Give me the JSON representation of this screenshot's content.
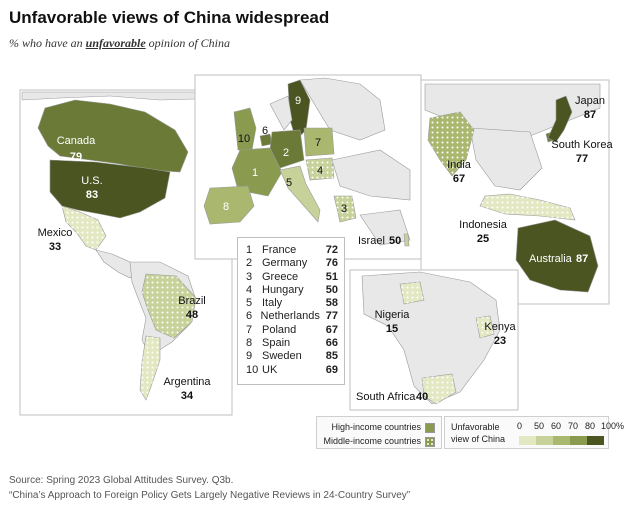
{
  "title": "Unfavorable views of China widespread",
  "subtitle": {
    "prefix": "% who have an ",
    "emphasis": "unfavorable",
    "suffix": " opinion of China"
  },
  "scale_colors": {
    "0": "#e3e8c3",
    "50": "#c7d29a",
    "60": "#a9b86e",
    "70": "#8a9b4f",
    "80": "#6b7b37",
    "100": "#4a5521",
    "unsurveyed": "#e8e8e8",
    "border": "#9a9a9a",
    "water": "#ffffff"
  },
  "map_labels": {
    "canada": {
      "name": "Canada",
      "value": "79"
    },
    "us": {
      "name": "U.S.",
      "value": "83"
    },
    "mexico": {
      "name": "Mexico",
      "value": "33"
    },
    "brazil": {
      "name": "Brazil",
      "value": "48"
    },
    "argentina": {
      "name": "Argentina",
      "value": "34"
    },
    "israel": {
      "name": "Israel",
      "value": "50"
    },
    "india": {
      "name": "India",
      "value": "67"
    },
    "indonesia": {
      "name": "Indonesia",
      "value": "25"
    },
    "japan": {
      "name": "Japan",
      "value": "87"
    },
    "south_korea": {
      "name": "South Korea",
      "value": "77"
    },
    "australia": {
      "name": "Australia",
      "value": "87"
    },
    "nigeria": {
      "name": "Nigeria",
      "value": "15"
    },
    "kenya": {
      "name": "Kenya",
      "value": "23"
    },
    "south_africa": {
      "name": "South Africa",
      "value": "40"
    }
  },
  "europe_numbers": [
    "1",
    "2",
    "3",
    "4",
    "5",
    "6",
    "7",
    "8",
    "9",
    "10"
  ],
  "europe_list": [
    {
      "num": "1",
      "country": "France",
      "value": "72"
    },
    {
      "num": "2",
      "country": "Germany",
      "value": "76"
    },
    {
      "num": "3",
      "country": "Greece",
      "value": "51"
    },
    {
      "num": "4",
      "country": "Hungary",
      "value": "50"
    },
    {
      "num": "5",
      "country": "Italy",
      "value": "58"
    },
    {
      "num": "6",
      "country": "Netherlands",
      "value": "77"
    },
    {
      "num": "7",
      "country": "Poland",
      "value": "67"
    },
    {
      "num": "8",
      "country": "Spain",
      "value": "66"
    },
    {
      "num": "9",
      "country": "Sweden",
      "value": "85"
    },
    {
      "num": "10",
      "country": "UK",
      "value": "69"
    }
  ],
  "income_legend": {
    "high": "High-income countries",
    "middle": "Middle-income countries"
  },
  "scale_legend": {
    "title_line1": "Unfavorable",
    "title_line2": "view of China",
    "ticks": [
      "0",
      "50",
      "60",
      "70",
      "80",
      "100%"
    ]
  },
  "source": "Source: Spring 2023 Global Attitudes Survey. Q3b.",
  "note": "“China’s Approach to Foreign Policy Gets Largely Negative Reviews in 24-Country Survey”"
}
